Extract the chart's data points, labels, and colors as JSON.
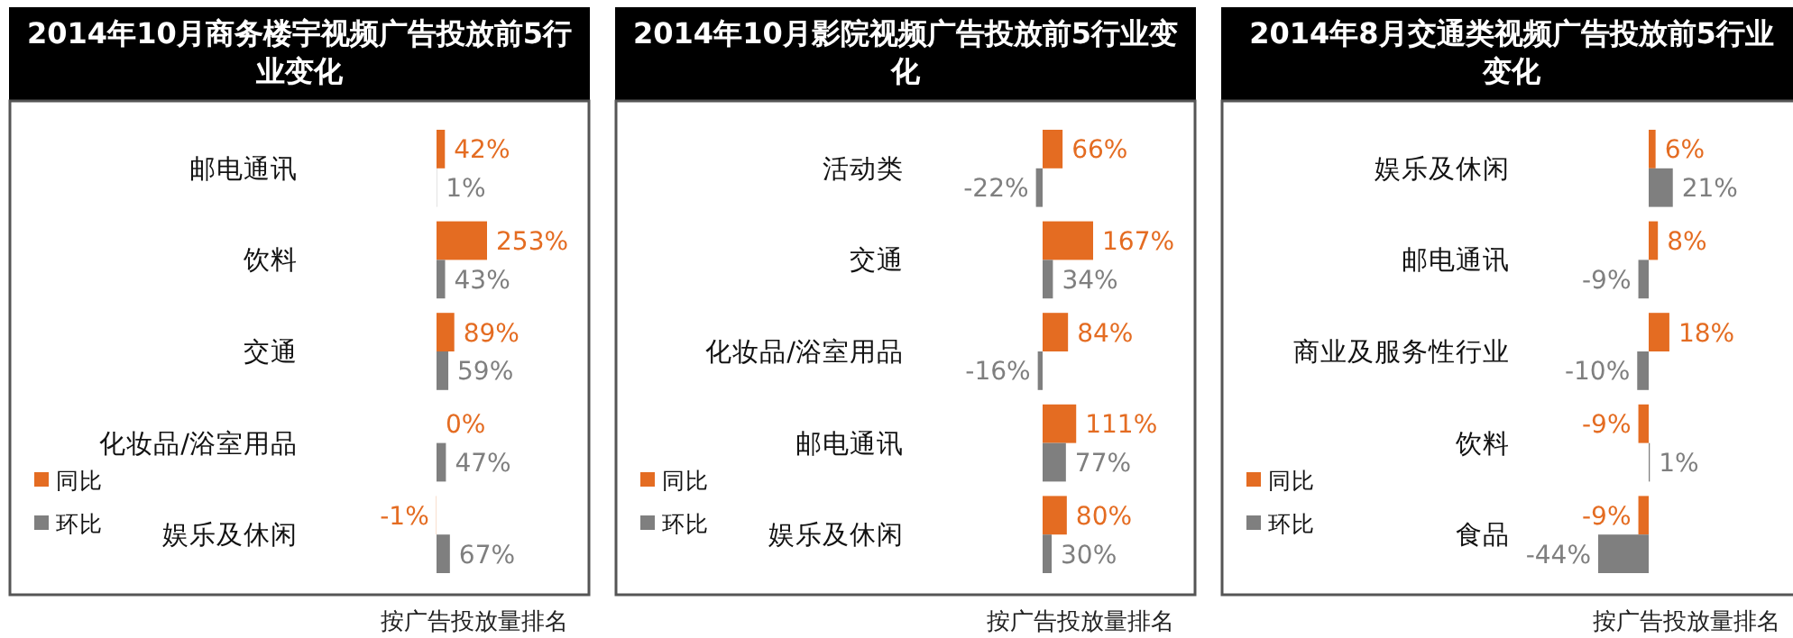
{
  "chart_data": [
    {
      "type": "bar",
      "orientation": "horizontal",
      "title": "2014年10月商务楼宇视频广告投放前5行业变化",
      "categories": [
        "邮电通讯",
        "饮料",
        "交通",
        "化妆品/浴室用品",
        "娱乐及休闲"
      ],
      "legend": "bottom left",
      "annotations": [
        "按广告投放量排名"
      ],
      "series": [
        {
          "name": "同比",
          "color": "#e46c22",
          "values": [
            42,
            253,
            89,
            0,
            -1
          ],
          "value_labels": [
            "42%",
            "253%",
            "89%",
            "0%",
            "-1%"
          ]
        },
        {
          "name": "环比",
          "color": "#7f7f7f",
          "values": [
            1,
            43,
            59,
            47,
            67
          ],
          "value_labels": [
            "1%",
            "43%",
            "59%",
            "47%",
            "67%"
          ]
        }
      ]
    },
    {
      "type": "bar",
      "orientation": "horizontal",
      "title": "2014年10月影院视频广告投放前5行业变化",
      "categories": [
        "活动类",
        "交通",
        "化妆品/浴室用品",
        "邮电通讯",
        "娱乐及休闲"
      ],
      "legend": "bottom left",
      "annotations": [
        "按广告投放量排名"
      ],
      "series": [
        {
          "name": "同比",
          "color": "#e46c22",
          "values": [
            66,
            167,
            84,
            111,
            80
          ],
          "value_labels": [
            "66%",
            "167%",
            "84%",
            "111%",
            "80%"
          ]
        },
        {
          "name": "环比",
          "color": "#7f7f7f",
          "values": [
            -22,
            34,
            -16,
            77,
            30
          ],
          "value_labels": [
            "-22%",
            "34%",
            "-16%",
            "77%",
            "30%"
          ]
        }
      ]
    },
    {
      "type": "bar",
      "orientation": "horizontal",
      "title": "2014年8月交通类视频广告投放前5行业变化",
      "categories": [
        "娱乐及休闲",
        "邮电通讯",
        "商业及服务性行业",
        "饮料",
        "食品"
      ],
      "legend": "bottom left",
      "annotations": [
        "按广告投放量排名"
      ],
      "series": [
        {
          "name": "同比",
          "color": "#e46c22",
          "values": [
            6,
            8,
            18,
            -9,
            -9
          ],
          "value_labels": [
            "6%",
            "8%",
            "18%",
            "-9%",
            "-9%"
          ]
        },
        {
          "name": "环比",
          "color": "#7f7f7f",
          "values": [
            21,
            -9,
            -10,
            1,
            -44
          ],
          "value_labels": [
            "21%",
            "-9%",
            "-10%",
            "1%",
            "-44%"
          ]
        }
      ]
    }
  ]
}
